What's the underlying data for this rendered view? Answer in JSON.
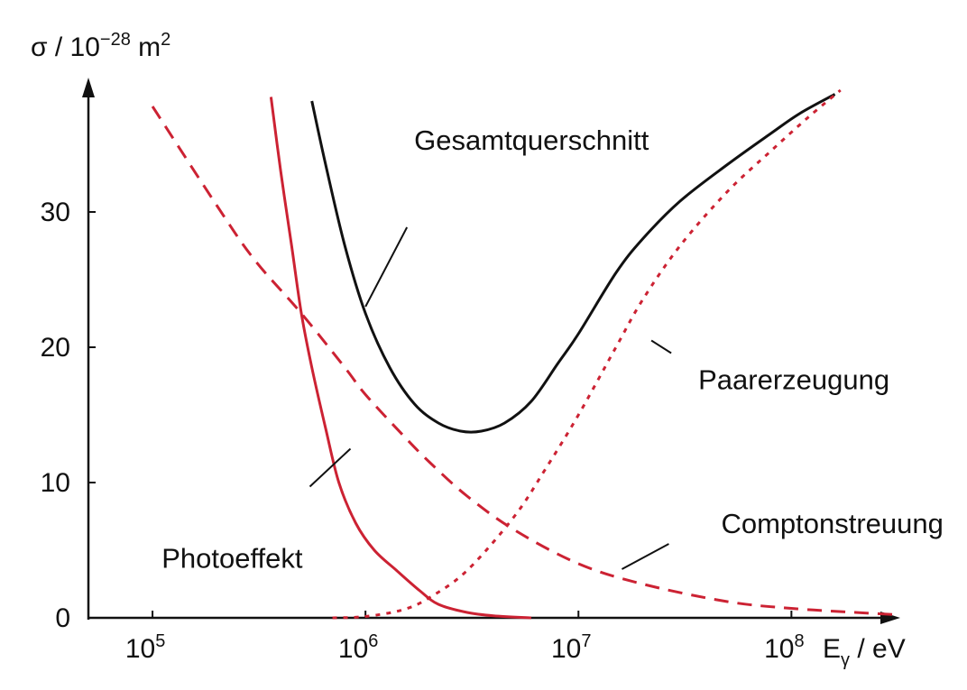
{
  "chart_data": {
    "type": "line",
    "title": "",
    "ylabel": {
      "prefix": "σ / 10",
      "exponent": "−28",
      "unit": " m",
      "unit_exponent": "2"
    },
    "xlabel": {
      "base": "E",
      "subscript": "γ",
      "unit": " / eV"
    },
    "x_scale": "log",
    "xlim": [
      50000,
      300000000
    ],
    "ylim": [
      0,
      39
    ],
    "y_ticks": [
      0,
      10,
      20,
      30
    ],
    "y_tick_labels": [
      "0",
      "10",
      "20",
      "30"
    ],
    "x_ticks": [
      {
        "value": 100000,
        "base": "10",
        "exp": "5"
      },
      {
        "value": 1000000,
        "base": "10",
        "exp": "6"
      },
      {
        "value": 10000000,
        "base": "10",
        "exp": "7"
      },
      {
        "value": 100000000,
        "base": "10",
        "exp": "8"
      }
    ],
    "grid": false,
    "legend": "none",
    "series": [
      {
        "name": "Gesamtquerschnitt",
        "color": "#111111",
        "dash": "solid",
        "points": [
          [
            560000,
            38.2
          ],
          [
            650000,
            33.5
          ],
          [
            800000,
            27.5
          ],
          [
            1000000,
            22.5
          ],
          [
            1300000,
            18.5
          ],
          [
            1700000,
            15.8
          ],
          [
            2200000,
            14.4
          ],
          [
            2800000,
            13.8
          ],
          [
            3500000,
            13.8
          ],
          [
            4500000,
            14.4
          ],
          [
            6000000,
            16.0
          ],
          [
            8000000,
            18.8
          ],
          [
            10000000,
            21.0
          ],
          [
            15000000,
            25.5
          ],
          [
            20000000,
            28.0
          ],
          [
            30000000,
            30.8
          ],
          [
            50000000,
            33.5
          ],
          [
            80000000,
            35.8
          ],
          [
            110000000,
            37.3
          ],
          [
            160000000,
            38.7
          ]
        ]
      },
      {
        "name": "Photoeffekt",
        "color": "#cc2233",
        "dash": "solid",
        "points": [
          [
            360000,
            38.5
          ],
          [
            400000,
            33.0
          ],
          [
            450000,
            27.5
          ],
          [
            500000,
            22.5
          ],
          [
            560000,
            18.5
          ],
          [
            650000,
            14.0
          ],
          [
            750000,
            10.0
          ],
          [
            900000,
            7.0
          ],
          [
            1100000,
            5.0
          ],
          [
            1400000,
            3.5
          ],
          [
            1800000,
            2.0
          ],
          [
            2200000,
            1.0
          ],
          [
            3000000,
            0.4
          ],
          [
            4000000,
            0.15
          ],
          [
            6000000,
            0.0
          ]
        ]
      },
      {
        "name": "Comptonstreuung",
        "color": "#cc2233",
        "dash": "long",
        "points": [
          [
            100000,
            37.8
          ],
          [
            200000,
            30.5
          ],
          [
            300000,
            26.5
          ],
          [
            500000,
            22.5
          ],
          [
            800000,
            18.5
          ],
          [
            1000000,
            16.5
          ],
          [
            1500000,
            13.5
          ],
          [
            2000000,
            11.5
          ],
          [
            3000000,
            9.0
          ],
          [
            5000000,
            6.5
          ],
          [
            10000000,
            4.0
          ],
          [
            20000000,
            2.5
          ],
          [
            50000000,
            1.2
          ],
          [
            100000000,
            0.7
          ],
          [
            200000000,
            0.4
          ],
          [
            300000000,
            0.25
          ]
        ]
      },
      {
        "name": "Paarerzeugung",
        "color": "#cc2233",
        "dash": "short",
        "points": [
          [
            700000,
            0.0
          ],
          [
            1000000,
            0.1
          ],
          [
            1500000,
            0.6
          ],
          [
            2000000,
            1.5
          ],
          [
            3000000,
            3.5
          ],
          [
            5000000,
            7.5
          ],
          [
            7000000,
            11.0
          ],
          [
            10000000,
            15.0
          ],
          [
            15000000,
            20.0
          ],
          [
            20000000,
            23.5
          ],
          [
            30000000,
            27.5
          ],
          [
            50000000,
            31.5
          ],
          [
            80000000,
            34.5
          ],
          [
            120000000,
            37.0
          ],
          [
            170000000,
            39.0
          ]
        ]
      }
    ],
    "annotations": [
      {
        "text": "Gesamtquerschnitt",
        "series": "Gesamtquerschnitt",
        "at": [
          1000000,
          23.0
        ]
      },
      {
        "text": "Photoeffekt",
        "series": "Photoeffekt",
        "at": [
          850000,
          12.5
        ]
      },
      {
        "text": "Comptonstreuung",
        "series": "Comptonstreuung",
        "at": [
          16000000,
          3.6
        ]
      },
      {
        "text": "Paarerzeugung",
        "series": "Paarerzeugung",
        "at": [
          22000000,
          20.5
        ]
      }
    ]
  }
}
